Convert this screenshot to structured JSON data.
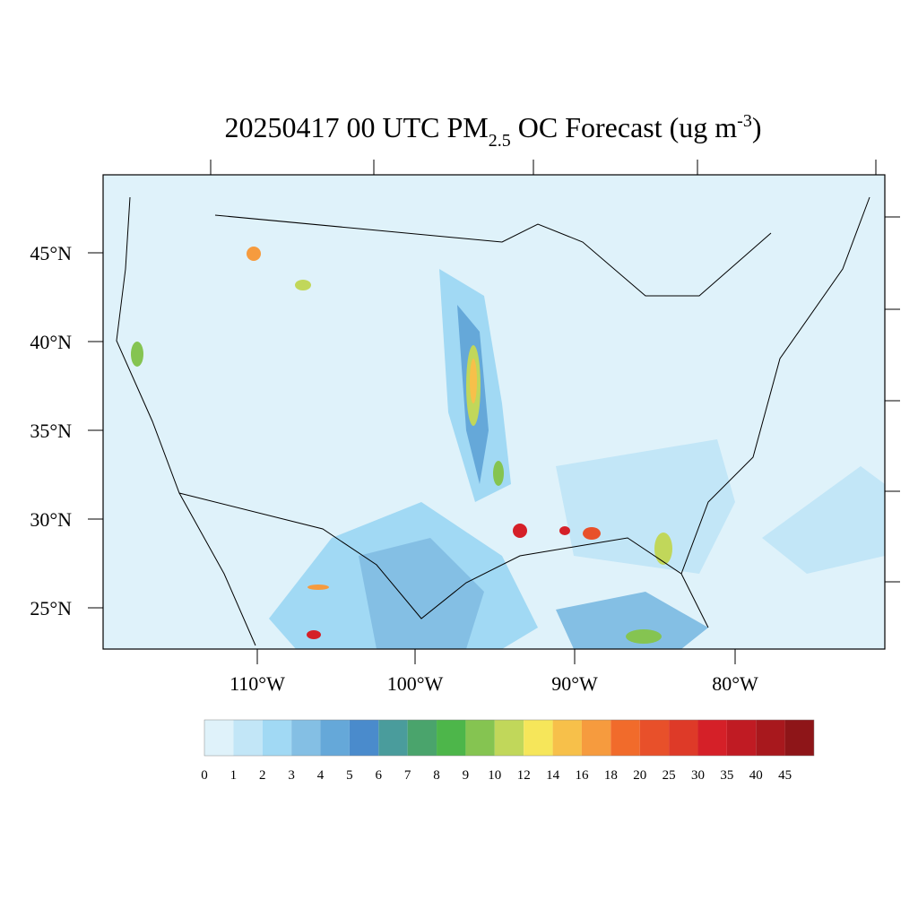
{
  "header": {
    "title": [
      "20250417 00 UTC PM",
      "2.5",
      " OC Forecast (ug m",
      "-3",
      ")"
    ]
  },
  "map": {
    "lat_labels": [
      "45°N",
      "40°N",
      "35°N",
      "30°N",
      "25°N"
    ],
    "lon_labels": [
      "110°W",
      "100°W",
      "90°W",
      "80°W"
    ]
  },
  "colorbar": {
    "levels": [
      0,
      1,
      2,
      3,
      4,
      5,
      6,
      7,
      8,
      9,
      10,
      12,
      14,
      16,
      18,
      20,
      25,
      30,
      35,
      40,
      45
    ],
    "colors": [
      "#dff2fa",
      "#c2e6f7",
      "#a1d9f4",
      "#84bfe4",
      "#65a8d9",
      "#4a8bcc",
      "#4a9c9c",
      "#4aa46c",
      "#4db64a",
      "#85c451",
      "#c1d75a",
      "#f6e65a",
      "#f7c04a",
      "#f69b3e",
      "#f16b2b",
      "#e8502a",
      "#de3a28",
      "#d52028",
      "#c01b23",
      "#a8181d",
      "#8e1518"
    ]
  }
}
